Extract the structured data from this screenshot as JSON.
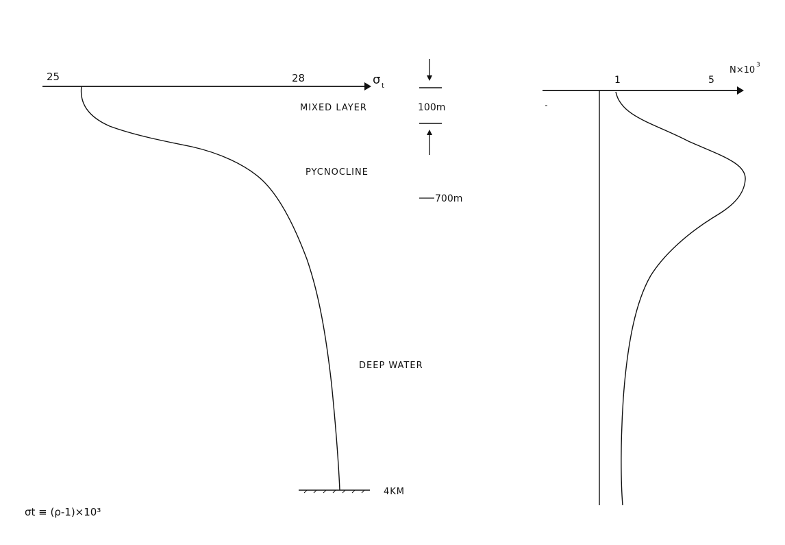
{
  "left_panel": {
    "tick_25": "25",
    "tick_28": "28",
    "axis_symbol": "σ",
    "axis_subscript": "t",
    "mixed_layer": "MIXED LAYER",
    "pycnocline": "PYCNOCLINE",
    "deep_water": "DEEP WATER",
    "depth_100m": "100m",
    "depth_700m": "700m",
    "depth_4km": "4KM",
    "definition": "σt ≡ (ρ-1)×10³"
  },
  "right_panel": {
    "axis_title_base": "N×10",
    "axis_title_exp": "3",
    "tick_1": "1",
    "tick_5": "5"
  },
  "chart_data": [
    {
      "type": "line",
      "xlabel": "σt",
      "x_ticks": [
        "25",
        "28"
      ],
      "series": [
        {
          "description_points": [
            {
              "depth": "0 (surface)",
              "sigma_t": 25.45
            },
            {
              "depth": "100m",
              "sigma_t": 26.1
            },
            {
              "depth": "700m",
              "sigma_t": 27.5
            },
            {
              "depth": "4KM",
              "sigma_t": 28.4
            }
          ]
        }
      ],
      "zones": [
        "MIXED LAYER",
        "PYCNOCLINE",
        "DEEP WATER"
      ]
    },
    {
      "type": "line",
      "xlabel": "N×10³",
      "x_ticks": [
        "1",
        "5"
      ],
      "series": [
        {
          "description_points": [
            {
              "depth": "0 (surface)",
              "N_x1000": 1
            },
            {
              "depth": "100m",
              "N_x1000": 3.0
            },
            {
              "depth": "~300m",
              "N_x1000": 5.2
            },
            {
              "depth": "700m",
              "N_x1000": 3.0
            },
            {
              "depth": "4KM",
              "N_x1000": 1.1
            }
          ]
        }
      ]
    }
  ]
}
